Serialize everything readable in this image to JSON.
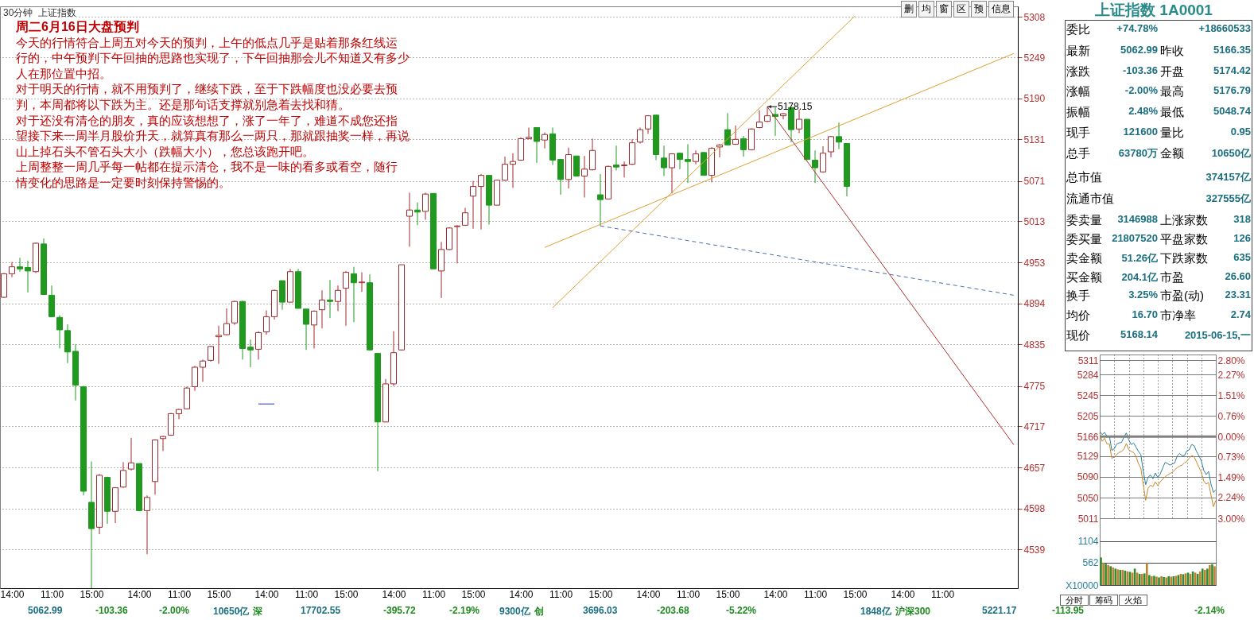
{
  "chart_data": [
    {
      "type": "candlestick",
      "title": "周二6月16日大盘预判",
      "subtitle": "30分钟  上证指数",
      "categories": [
        null,
        "14:00",
        null,
        null,
        null,
        null,
        "11:00",
        null,
        null,
        null,
        null,
        "15:00",
        null,
        null,
        null,
        null,
        null,
        "14:00",
        null,
        null,
        null,
        null,
        "11:00",
        null,
        null,
        null,
        null,
        "15:00",
        null,
        null,
        null,
        null,
        null,
        "14:00",
        null,
        null,
        null,
        null,
        "11:00",
        null,
        null,
        null,
        null,
        "15:00",
        null,
        null,
        null,
        null,
        null,
        "14:00",
        null,
        null,
        null,
        null,
        "11:00",
        null,
        null,
        null,
        null,
        "15:00",
        null,
        null,
        null,
        null,
        null,
        "14:00",
        null,
        null,
        null,
        null,
        "11:00",
        null,
        null,
        null,
        null,
        "15:00",
        null,
        null,
        null,
        null,
        null,
        "14:00",
        null,
        null,
        null,
        null,
        "11:00",
        null,
        null,
        null,
        null,
        "15:00",
        null,
        null,
        null,
        null,
        null,
        "14:00",
        null,
        null,
        null,
        null,
        "11:00",
        null,
        null,
        null,
        null,
        "15:00",
        null,
        null,
        null,
        null,
        null,
        "14:00",
        null,
        null,
        null,
        null,
        "11:00",
        null,
        null,
        null,
        null,
        null,
        null,
        null,
        null,
        null
      ],
      "ohlc": [
        [
          4903,
          4938,
          4902,
          4937
        ],
        [
          4937,
          4954,
          4932,
          4947
        ],
        [
          4947,
          4960,
          4940,
          4944
        ],
        [
          4946,
          4956,
          4910,
          4941
        ],
        [
          4940,
          4982,
          4938,
          4981
        ],
        [
          4980,
          4988,
          4907,
          4907
        ],
        [
          4906,
          4920,
          4874,
          4875
        ],
        [
          4874,
          4877,
          4829,
          4856
        ],
        [
          4855,
          4864,
          4808,
          4824
        ],
        [
          4825,
          4835,
          4754,
          4776
        ],
        [
          4774,
          4775,
          4617,
          4623
        ],
        [
          4607,
          4666,
          4483,
          4569
        ],
        [
          4571,
          4648,
          4561,
          4646
        ],
        [
          4643,
          4644,
          4576,
          4594
        ],
        [
          4594,
          4629,
          4577,
          4628
        ],
        [
          4629,
          4665,
          4628,
          4653
        ],
        [
          4655,
          4700,
          4653,
          4664
        ],
        [
          4663,
          4663,
          4594,
          4595
        ],
        [
          4595,
          4617,
          4532,
          4614
        ],
        [
          4637,
          4698,
          4618,
          4697
        ],
        [
          4699,
          4703,
          4681,
          4702
        ],
        [
          4704,
          4736,
          4703,
          4735
        ],
        [
          4735,
          4742,
          4727,
          4741
        ],
        [
          4742,
          4774,
          4742,
          4772
        ],
        [
          4774,
          4804,
          4768,
          4802
        ],
        [
          4802,
          4813,
          4781,
          4811
        ],
        [
          4812,
          4833,
          4810,
          4832
        ],
        [
          4846,
          4862,
          4807,
          4848
        ],
        [
          4849,
          4887,
          4848,
          4865
        ],
        [
          4866,
          4898,
          4863,
          4897
        ],
        [
          4897,
          4898,
          4813,
          4829
        ],
        [
          4831,
          4842,
          4802,
          4827
        ],
        [
          4828,
          4854,
          4813,
          4852
        ],
        [
          4853,
          4884,
          4849,
          4875
        ],
        [
          4875,
          4914,
          4871,
          4913
        ],
        [
          4927,
          4927,
          4885,
          4896
        ],
        [
          4896,
          4944,
          4896,
          4940
        ],
        [
          4940,
          4944,
          4887,
          4887
        ],
        [
          4886,
          4886,
          4827,
          4864
        ],
        [
          4863,
          4884,
          4829,
          4883
        ],
        [
          4885,
          4913,
          4858,
          4899
        ],
        [
          4899,
          4928,
          4873,
          4897
        ],
        [
          4897,
          4920,
          4883,
          4913
        ],
        [
          4916,
          4941,
          4862,
          4939
        ],
        [
          4937,
          4947,
          4867,
          4924
        ],
        [
          4924,
          4939,
          4911,
          4925
        ],
        [
          4924,
          4936,
          4826,
          4827
        ],
        [
          4822,
          4822,
          4652,
          4723
        ],
        [
          4723,
          4785,
          4723,
          4778
        ],
        [
          4778,
          4854,
          4775,
          4823
        ],
        [
          4827,
          4950,
          4826,
          4950
        ],
        [
          5020,
          5054,
          4976,
          5029
        ],
        [
          5029,
          5040,
          5007,
          5026
        ],
        [
          5027,
          5054,
          5015,
          5052
        ],
        [
          5053,
          5053,
          4944,
          4944
        ],
        [
          4941,
          4983,
          4902,
          4972
        ],
        [
          4972,
          5004,
          4971,
          5003
        ],
        [
          5005,
          5007,
          4952,
          5006
        ],
        [
          5007,
          5032,
          5006,
          5025
        ],
        [
          5049,
          5071,
          5002,
          5063
        ],
        [
          5063,
          5081,
          5001,
          5079
        ],
        [
          5079,
          5079,
          5008,
          5036
        ],
        [
          5036,
          5073,
          5036,
          5072
        ],
        [
          5072,
          5106,
          5071,
          5095
        ],
        [
          5095,
          5111,
          5061,
          5099
        ],
        [
          5101,
          5134,
          5100,
          5132
        ],
        [
          5132,
          5148,
          5131,
          5134
        ],
        [
          5148,
          5148,
          5097,
          5128
        ],
        [
          5130,
          5141,
          5118,
          5138
        ],
        [
          5139,
          5148,
          5094,
          5101
        ],
        [
          5102,
          5102,
          5051,
          5073
        ],
        [
          5073,
          5119,
          5060,
          5109
        ],
        [
          5107,
          5107,
          5077,
          5078
        ],
        [
          5078,
          5107,
          5047,
          5088
        ],
        [
          5087,
          5132,
          5086,
          5115
        ],
        [
          5051,
          5081,
          5006,
          5044
        ],
        [
          5045,
          5093,
          5045,
          5092
        ],
        [
          5094,
          5122,
          5086,
          5091
        ],
        [
          5093,
          5099,
          5076,
          5094
        ],
        [
          5095,
          5131,
          5094,
          5126
        ],
        [
          5127,
          5148,
          5125,
          5145
        ],
        [
          5146,
          5166,
          5139,
          5165
        ],
        [
          5166,
          5166,
          5101,
          5109
        ],
        [
          5104,
          5122,
          5078,
          5090
        ],
        [
          5090,
          5111,
          5053,
          5110
        ],
        [
          5111,
          5112,
          5088,
          5102
        ],
        [
          5102,
          5124,
          5068,
          5099
        ],
        [
          5099,
          5115,
          5095,
          5110
        ],
        [
          5112,
          5113,
          5079,
          5079
        ],
        [
          5079,
          5120,
          5069,
          5118
        ],
        [
          5120,
          5124,
          5105,
          5123
        ],
        [
          5145,
          5169,
          5122,
          5123
        ],
        [
          5124,
          5151,
          5123,
          5131
        ],
        [
          5132,
          5136,
          5106,
          5116
        ],
        [
          5116,
          5147,
          5115,
          5146
        ],
        [
          5148,
          5173,
          5147,
          5156
        ],
        [
          5157,
          5178.15,
          5156,
          5165
        ],
        [
          5167,
          5177,
          5136,
          5164
        ],
        [
          5165,
          5169,
          5160,
          5168
        ],
        [
          5177,
          5177,
          5127,
          5145
        ],
        [
          5146,
          5174,
          5140,
          5160
        ],
        [
          5160,
          5160,
          5101,
          5102
        ],
        [
          5101,
          5115,
          5068,
          5090
        ],
        [
          5084,
          5121,
          5083,
          5111
        ],
        [
          5113,
          5136,
          5105,
          5135
        ],
        [
          5135,
          5155,
          5117,
          5127
        ],
        [
          5125,
          5125,
          5048.74,
          5062.99
        ],
        null,
        null,
        null,
        null,
        null,
        null,
        null,
        null,
        null,
        null,
        null,
        null,
        null,
        null,
        null,
        null,
        null,
        null,
        null,
        null,
        null
      ],
      "colors": [
        "#a0282d",
        "#a0282d",
        "#1f9a1f",
        "#1f9a1f",
        "#a0282d",
        "#1f9a1f",
        "#1f9a1f",
        "#1f9a1f",
        "#1f9a1f",
        "#1f9a1f",
        "#1f9a1f",
        "#1f9a1f",
        "#a0282d",
        "#1f9a1f",
        "#a0282d",
        "#a0282d",
        "#a0282d",
        "#1f9a1f",
        "#a0282d",
        "#a0282d",
        "#a0282d",
        "#a0282d",
        "#a0282d",
        "#a0282d",
        "#a0282d",
        "#a0282d",
        "#a0282d",
        "#a0282d",
        "#a0282d",
        "#a0282d",
        "#1f9a1f",
        "#1f9a1f",
        "#a0282d",
        "#a0282d",
        "#a0282d",
        "#1f9a1f",
        "#a0282d",
        "#1f9a1f",
        "#1f9a1f",
        "#a0282d",
        "#a0282d",
        "#1f9a1f",
        "#a0282d",
        "#a0282d",
        "#1f9a1f",
        "#a0282d",
        "#1f9a1f",
        "#1f9a1f",
        "#a0282d",
        "#a0282d",
        "#a0282d",
        "#a0282d",
        "#1f9a1f",
        "#a0282d",
        "#1f9a1f",
        "#a0282d",
        "#a0282d",
        "#a0282d",
        "#a0282d",
        "#a0282d",
        "#a0282d",
        "#1f9a1f",
        "#a0282d",
        "#a0282d",
        "#a0282d",
        "#a0282d",
        "#a0282d",
        "#1f9a1f",
        "#a0282d",
        "#1f9a1f",
        "#1f9a1f",
        "#a0282d",
        "#1f9a1f",
        "#a0282d",
        "#a0282d",
        "#1f9a1f",
        "#a0282d",
        "#1f9a1f",
        "#a0282d",
        "#a0282d",
        "#a0282d",
        "#a0282d",
        "#1f9a1f",
        "#1f9a1f",
        "#a0282d",
        "#1f9a1f",
        "#1f9a1f",
        "#a0282d",
        "#1f9a1f",
        "#a0282d",
        "#a0282d",
        "#1f9a1f",
        "#a0282d",
        "#1f9a1f",
        "#a0282d",
        "#a0282d",
        "#a0282d",
        "#1f9a1f",
        "#a0282d",
        "#1f9a1f",
        "#a0282d",
        "#1f9a1f",
        "#1f9a1f",
        "#a0282d",
        "#a0282d",
        "#1f9a1f",
        "#1f9a1f",
        null,
        null,
        null,
        null,
        null,
        null,
        null,
        null,
        null,
        null,
        null,
        null,
        null,
        null,
        null,
        null,
        null,
        null,
        null,
        null,
        null
      ],
      "ylim": [
        4483,
        5323
      ],
      "yticks": [
        4539,
        4598,
        4657,
        4717,
        4775,
        4835,
        4894,
        4953,
        5013,
        5071,
        5131,
        5190,
        5249,
        5308
      ],
      "grid": "y",
      "series": [
        {
          "type": "line",
          "color": "#e0a030",
          "values": [
            null,
            null,
            null,
            null,
            null,
            null,
            null,
            null,
            null,
            null,
            null,
            null,
            null,
            null,
            null,
            null,
            null,
            null,
            null,
            null,
            null,
            null,
            null,
            null,
            null,
            null,
            null,
            null,
            null,
            null,
            null,
            null,
            null,
            null,
            null,
            null,
            null,
            null,
            null,
            null,
            null,
            null,
            null,
            null,
            null,
            null,
            null,
            null,
            null,
            null,
            null,
            null,
            null,
            null,
            null,
            null,
            null,
            null,
            null,
            null,
            null,
            null,
            null,
            null,
            null,
            null,
            null,
            null,
            4975,
            null,
            null,
            null,
            null,
            null,
            null,
            null,
            null,
            null,
            null,
            null,
            null,
            null,
            null,
            null,
            null,
            null,
            null,
            null,
            null,
            null,
            null,
            null,
            null,
            null,
            null,
            null,
            null,
            null,
            null,
            null,
            null,
            null,
            null,
            null,
            null,
            null,
            null,
            null,
            null,
            null,
            null,
            null,
            null,
            null,
            null,
            null,
            null,
            null,
            null,
            null,
            null,
            null,
            null,
            null,
            null,
            null,
            null,
            5255
          ]
        },
        {
          "type": "line",
          "color": "#e0a030",
          "values": [
            null,
            null,
            null,
            null,
            null,
            null,
            null,
            null,
            null,
            null,
            null,
            null,
            null,
            null,
            null,
            null,
            null,
            null,
            null,
            null,
            null,
            null,
            null,
            null,
            null,
            null,
            null,
            null,
            null,
            null,
            null,
            null,
            null,
            null,
            null,
            null,
            null,
            null,
            null,
            null,
            null,
            null,
            null,
            null,
            null,
            null,
            null,
            null,
            null,
            null,
            null,
            null,
            null,
            null,
            null,
            null,
            null,
            null,
            null,
            null,
            null,
            null,
            null,
            null,
            null,
            null,
            null,
            null,
            null,
            4888,
            null,
            null,
            null,
            null,
            null,
            null,
            null,
            null,
            null,
            null,
            null,
            null,
            null,
            null,
            null,
            null,
            null,
            null,
            null,
            null,
            null,
            null,
            null,
            null,
            null,
            null,
            null,
            null,
            null,
            null,
            null,
            null,
            null,
            null,
            null,
            null,
            null,
            5309,
            null,
            null,
            null,
            null,
            null,
            null,
            null,
            null,
            null,
            null,
            null,
            null,
            null,
            null,
            null,
            null,
            null,
            null,
            null,
            null
          ]
        },
        {
          "type": "line",
          "color": "#b03030",
          "values": [
            null,
            null,
            null,
            null,
            null,
            null,
            null,
            null,
            null,
            null,
            null,
            null,
            null,
            null,
            null,
            null,
            null,
            null,
            null,
            null,
            null,
            null,
            null,
            null,
            null,
            null,
            null,
            null,
            null,
            null,
            null,
            null,
            null,
            null,
            null,
            null,
            null,
            null,
            null,
            null,
            null,
            null,
            null,
            null,
            null,
            null,
            null,
            null,
            null,
            null,
            null,
            null,
            null,
            null,
            null,
            null,
            null,
            null,
            null,
            null,
            null,
            null,
            null,
            null,
            null,
            null,
            null,
            null,
            null,
            null,
            null,
            null,
            null,
            null,
            null,
            null,
            null,
            null,
            null,
            null,
            null,
            null,
            null,
            null,
            null,
            null,
            null,
            null,
            null,
            null,
            null,
            null,
            null,
            null,
            null,
            null,
            5178,
            null,
            null,
            null,
            null,
            null,
            null,
            null,
            null,
            null,
            null,
            null,
            null,
            null,
            null,
            null,
            null,
            null,
            null,
            null,
            null,
            null,
            null,
            null,
            null,
            null,
            null,
            null,
            null,
            null,
            null,
            4690
          ]
        },
        {
          "type": "line",
          "color": "#4a6fb0",
          "line_style": "dashed",
          "values": [
            null,
            null,
            null,
            null,
            null,
            null,
            null,
            null,
            null,
            null,
            null,
            null,
            null,
            null,
            null,
            null,
            null,
            null,
            null,
            null,
            null,
            null,
            null,
            null,
            null,
            null,
            null,
            null,
            null,
            null,
            null,
            null,
            null,
            null,
            null,
            null,
            null,
            null,
            null,
            null,
            null,
            null,
            null,
            null,
            null,
            null,
            null,
            null,
            null,
            null,
            null,
            null,
            null,
            null,
            null,
            null,
            null,
            null,
            null,
            null,
            null,
            null,
            null,
            null,
            null,
            null,
            null,
            null,
            null,
            null,
            null,
            null,
            null,
            null,
            null,
            5006,
            null,
            null,
            null,
            null,
            null,
            null,
            null,
            null,
            null,
            null,
            null,
            null,
            null,
            null,
            null,
            null,
            null,
            null,
            null,
            null,
            null,
            null,
            null,
            null,
            null,
            null,
            null,
            null,
            null,
            null,
            null,
            null,
            null,
            null,
            null,
            null,
            null,
            null,
            null,
            null,
            null,
            null,
            null,
            null,
            null,
            null,
            null,
            null,
            null,
            null,
            null,
            4906
          ]
        },
        {
          "type": "line",
          "color": "#2030c0",
          "values": [
            null,
            null,
            null,
            null,
            null,
            null,
            null,
            null,
            null,
            null,
            null,
            null,
            null,
            null,
            null,
            null,
            null,
            null,
            null,
            null,
            null,
            null,
            null,
            null,
            null,
            null,
            null,
            null,
            null,
            null,
            null,
            null,
            4749,
            null,
            4749,
            null,
            null,
            null,
            null,
            null,
            null,
            null,
            null,
            null,
            null,
            null,
            null,
            null,
            null,
            null,
            null,
            null,
            null,
            null,
            null,
            null,
            null,
            null,
            null,
            null,
            null,
            null,
            null,
            null,
            null,
            null,
            null,
            null,
            null,
            null,
            null,
            null,
            null,
            null,
            null,
            null,
            null,
            null,
            null,
            null,
            null,
            null,
            null,
            null,
            null,
            null,
            null,
            null,
            null,
            null,
            null,
            null,
            null,
            null,
            null,
            null,
            null,
            null,
            null,
            null,
            null,
            null,
            null,
            null,
            null,
            null,
            null,
            null,
            null,
            null,
            null,
            null,
            null,
            null,
            null,
            null,
            null,
            null,
            null,
            null,
            null,
            null,
            null,
            null,
            null,
            null,
            null,
            null
          ]
        }
      ],
      "annotations": [
        "今天的行情符合上周五对今天的预判，上午的低点几乎是贴着那条红线运",
        "行的，中午预判下午回抽的思路也实现了，下午回抽那会儿不知道又有多少",
        "人在那位置中招。",
        "对于明天的行情，就不用预判了，继续下跌，至于下跌幅度也没必要去预",
        "判，本周都将以下跌为主。还是那句话支撑就别急着去找和猜。",
        "对于还没有清仓的朋友，真的应该想想了，涨了一年了，难道不成您还指",
        "望接下来一周半月股价升天，就算真有那么一两只，那就跟抽奖一样，再说",
        "山上掉石头不管石头大小（跌幅大小），您总该跑开吧。",
        "上周整整一周几乎每一帖都在提示清仓，我不是一味的看多或看空，随行",
        "情变化的思路是一定要时刻保持警惕的。",
        {
          "text": "5178.15",
          "y": 5178.15
        }
      ]
    },
    {
      "type": "other",
      "annotations": [
        "删",
        "均",
        "窗",
        "区",
        "预",
        "信息"
      ]
    },
    {
      "type": "other",
      "title": "上证指数 1A0001",
      "annotations": [
        "委比",
        "+74.78%",
        "+18660533",
        "最新",
        "5062.99",
        "昨收",
        "5166.35",
        "涨跌",
        "-103.36",
        "开盘",
        "5174.42",
        "涨幅",
        "-2.00%",
        "最高",
        "5176.79",
        "振幅",
        "2.48%",
        "最低",
        "5048.74",
        "现手",
        "121600",
        "量比",
        "0.95",
        "总手",
        "63780万",
        "金额",
        "10650亿",
        "总市值",
        "374157亿",
        "流通市值",
        "327555亿",
        "委卖量",
        "3146988",
        "上涨家数",
        "318",
        "委买量",
        "21807520",
        "平盘家数",
        "126",
        "卖金额",
        "51.26亿",
        "下跌家数",
        "635",
        "买金额",
        "204.1亿",
        "市盈",
        "26.60",
        "换手",
        "3.25%",
        "市盈(动)",
        "23.31",
        "均价",
        "16.70",
        "市净率",
        "2.74",
        "现价",
        "5168.14",
        "2015-06-15,一"
      ]
    },
    {
      "type": "line",
      "categories": [
        null,
        null,
        null,
        null,
        null,
        null,
        null,
        null,
        null,
        null,
        null,
        null,
        null,
        null,
        null,
        null,
        null,
        null,
        null,
        null,
        null,
        null,
        null,
        null,
        null,
        null,
        null,
        null,
        null,
        null,
        null,
        null,
        null,
        null,
        null,
        null,
        null,
        null,
        null,
        null,
        null,
        null,
        null,
        null,
        null,
        null,
        null,
        null,
        null
      ],
      "ylim": [
        5011,
        5322
      ],
      "yticks": [
        5011,
        5050,
        5090,
        5129,
        5166,
        5205,
        5245,
        5284,
        5311
      ],
      "y2lim": [
        -3.0,
        3.02
      ],
      "y2ticks": [
        {
          "value": -3.0,
          "label": "3.00%"
        },
        {
          "value": -2.24,
          "label": "2.24%"
        },
        {
          "value": -1.49,
          "label": "1.49%"
        },
        {
          "value": -0.73,
          "label": "0.73%"
        },
        {
          "value": 0,
          "label": "0.00%"
        },
        {
          "value": 0.76,
          "label": "0.76%"
        },
        {
          "value": 1.51,
          "label": "1.51%"
        },
        {
          "value": 2.27,
          "label": "2.27%"
        },
        {
          "value": 2.8,
          "label": "2.80%"
        }
      ],
      "tick_labels": "y",
      "grid": true,
      "ref_lines": [
        {
          "axis": "y2",
          "value": 0,
          "color": "#808080"
        }
      ],
      "series": [
        {
          "color": "#2a7f9a",
          "values": [
            5176,
            5170,
            5174,
            5167,
            5167,
            5140,
            5143,
            5152,
            5154,
            5155,
            5165,
            5173,
            5160,
            5151,
            5154,
            5146,
            5138,
            5132,
            5100,
            5075,
            5089,
            5093,
            5086,
            5097,
            5088,
            5095,
            5106,
            5117,
            5115,
            5112,
            5114,
            5116,
            5129,
            5134,
            5130,
            5130,
            5139,
            5141,
            5151,
            5149,
            5138,
            5130,
            5120,
            5102,
            5094,
            5100,
            5076,
            5060,
            5065
          ]
        },
        {
          "color": "#c8882a",
          "values": [
            5173,
            5157,
            5163,
            5152,
            5152,
            5125,
            5127,
            5132,
            5136,
            5138,
            5142,
            5153,
            5141,
            5138,
            5136,
            5128,
            5115,
            5106,
            5075,
            5045,
            5068,
            5074,
            5071,
            5080,
            5073,
            5080,
            5085,
            5090,
            5093,
            5096,
            5098,
            5103,
            5107,
            5110,
            5112,
            5116,
            5119,
            5125,
            5130,
            5128,
            5118,
            5108,
            5098,
            5082,
            5076,
            5079,
            5055,
            5033,
            5045
          ]
        }
      ]
    },
    {
      "type": "bar",
      "categories": [
        null,
        null,
        null,
        null,
        null,
        null,
        null,
        null,
        null,
        null,
        null,
        null,
        null,
        null,
        null,
        null,
        null,
        null,
        null,
        null,
        null,
        null,
        null,
        null,
        null,
        null,
        null,
        null,
        null,
        null,
        null,
        null,
        null,
        null,
        null,
        null,
        null,
        null,
        null,
        null,
        null,
        null,
        null,
        null,
        null,
        null,
        null,
        null
      ],
      "values": [
        690,
        560,
        530,
        500,
        470,
        440,
        410,
        390,
        380,
        380,
        360,
        340,
        330,
        310,
        410,
        310,
        280,
        280,
        290,
        560,
        250,
        220,
        230,
        210,
        190,
        220,
        200,
        190,
        220,
        210,
        220,
        230,
        250,
        280,
        270,
        290,
        310,
        280,
        340,
        310,
        280,
        340,
        410,
        380,
        410,
        500,
        520,
        470
      ],
      "colors": [
        "#2e8b2e",
        "#c08030",
        "#2e8b2e",
        "#c08030",
        "#2e8b2e",
        "#c08030",
        "#2e8b2e",
        "#c08030",
        "#2e8b2e",
        "#c08030",
        "#2e8b2e",
        "#c08030",
        "#2e8b2e",
        "#c08030",
        "#2e8b2e",
        "#c08030",
        "#2e8b2e",
        "#c08030",
        "#2e8b2e",
        "#c08030",
        "#2e8b2e",
        "#c08030",
        "#2e8b2e",
        "#c08030",
        "#2e8b2e",
        "#c08030",
        "#2e8b2e",
        "#c08030",
        "#2e8b2e",
        "#c08030",
        "#2e8b2e",
        "#c08030",
        "#2e8b2e",
        "#c08030",
        "#2e8b2e",
        "#c08030",
        "#2e8b2e",
        "#c08030",
        "#2e8b2e",
        "#c08030",
        "#2e8b2e",
        "#c08030",
        "#2e8b2e",
        "#c08030",
        "#2e8b2e",
        "#c08030",
        "#2e8b2e",
        "#c08030"
      ],
      "ylim": [
        0,
        1671
      ],
      "yticks": [
        {
          "value": 0,
          "label": "X10000"
        },
        562,
        1104
      ],
      "grid": "y"
    },
    {
      "type": "other",
      "annotations": [
        "分时",
        "筹码",
        "火焰"
      ]
    },
    {
      "type": "other",
      "annotations": [
        "5062.99",
        "-103.36",
        "-2.00%",
        "10650亿",
        "深",
        "17702.55",
        "-395.72",
        "-2.19%",
        "9300亿",
        "创",
        "3696.03",
        "-203.68",
        "-5.22%",
        "1848亿",
        "沪深300",
        "5221.17",
        "-113.95",
        "-2.14%"
      ]
    }
  ]
}
